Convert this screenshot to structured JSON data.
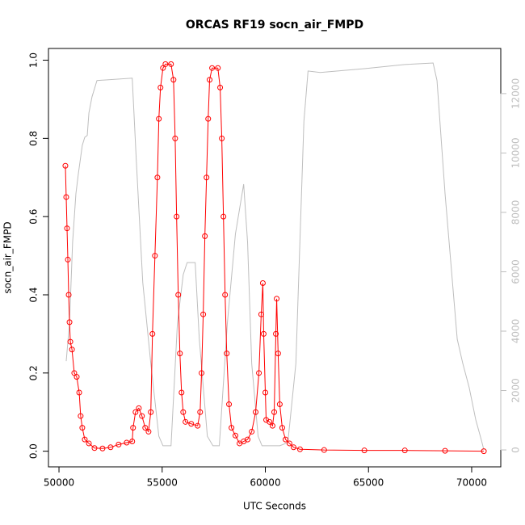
{
  "chart_data": {
    "type": "line",
    "title": "ORCAS RF19 socn_air_FMPD",
    "xlabel": "UTC Seconds",
    "ylabel": "socn_air_FMPD",
    "xlim": [
      49490,
      71410
    ],
    "xticks": [
      50000,
      55000,
      60000,
      65000,
      70000
    ],
    "ylim": [
      -0.04,
      1.03
    ],
    "yticks": [
      {
        "value": 0,
        "label": "0.0"
      },
      {
        "value": 0.2,
        "label": "0.2"
      },
      {
        "value": 0.4,
        "label": "0.4"
      },
      {
        "value": 0.6,
        "label": "0.6"
      },
      {
        "value": 0.8,
        "label": "0.8"
      },
      {
        "value": 1,
        "label": "1.0"
      }
    ],
    "y2lim": [
      -570,
      13520
    ],
    "y2ticks": [
      0,
      2000,
      4000,
      6000,
      8000,
      10000,
      12000
    ],
    "series": [
      {
        "color": "#ff0000",
        "markers": true,
        "x": [
          50310,
          50350,
          50390,
          50430,
          50470,
          50510,
          50550,
          50630,
          50740,
          50860,
          50980,
          51050,
          51130,
          51250,
          51450,
          51720,
          52110,
          52500,
          52890,
          53280,
          53550,
          53590,
          53710,
          53870,
          54020,
          54180,
          54340,
          54450,
          54530,
          54650,
          54770,
          54840,
          54920,
          55040,
          55160,
          55430,
          55550,
          55630,
          55700,
          55780,
          55860,
          55940,
          56020,
          56130,
          56410,
          56720,
          56840,
          56910,
          56990,
          57070,
          57150,
          57230,
          57300,
          57420,
          57700,
          57810,
          57890,
          57970,
          58050,
          58130,
          58240,
          58360,
          58550,
          58750,
          58950,
          59140,
          59340,
          59530,
          59690,
          59800,
          59880,
          59920,
          60000,
          60040,
          60200,
          60350,
          60430,
          60510,
          60550,
          60620,
          60700,
          60820,
          60980,
          61170,
          61370,
          61680,
          62850,
          64800,
          66760,
          68710,
          70590
        ],
        "values": [
          0.73,
          0.65,
          0.57,
          0.49,
          0.4,
          0.33,
          0.28,
          0.26,
          0.2,
          0.19,
          0.15,
          0.09,
          0.06,
          0.03,
          0.02,
          0.008,
          0.007,
          0.01,
          0.017,
          0.022,
          0.025,
          0.06,
          0.1,
          0.11,
          0.09,
          0.06,
          0.05,
          0.1,
          0.3,
          0.5,
          0.7,
          0.85,
          0.93,
          0.98,
          0.99,
          0.99,
          0.95,
          0.8,
          0.6,
          0.4,
          0.25,
          0.15,
          0.1,
          0.075,
          0.07,
          0.065,
          0.1,
          0.2,
          0.35,
          0.55,
          0.7,
          0.85,
          0.95,
          0.98,
          0.98,
          0.93,
          0.8,
          0.6,
          0.4,
          0.25,
          0.12,
          0.06,
          0.04,
          0.02,
          0.025,
          0.03,
          0.05,
          0.1,
          0.2,
          0.35,
          0.43,
          0.3,
          0.15,
          0.08,
          0.075,
          0.065,
          0.1,
          0.3,
          0.39,
          0.25,
          0.12,
          0.06,
          0.03,
          0.02,
          0.01,
          0.005,
          0.003,
          0.002,
          0.002,
          0.001,
          0
        ]
      },
      {
        "color": "#bebebe",
        "axis": "y2",
        "x": [
          50350,
          50510,
          50660,
          50820,
          50940,
          51130,
          51250,
          51370,
          51450,
          51600,
          51840,
          53550,
          53750,
          54060,
          54450,
          54840,
          55040,
          55430,
          55740,
          56020,
          56210,
          56600,
          56800,
          57190,
          57460,
          57770,
          58160,
          58550,
          58950,
          59140,
          59340,
          59650,
          59840,
          60700,
          61090,
          61480,
          61870,
          62070,
          62660,
          64800,
          66760,
          68130,
          68320,
          68710,
          69300,
          69570,
          69880,
          70200,
          70470,
          70590
        ],
        "values": [
          2990,
          4270,
          6990,
          8630,
          9310,
          10260,
          10530,
          10590,
          11350,
          11890,
          12440,
          12520,
          9710,
          5640,
          2910,
          460,
          140,
          140,
          4270,
          5900,
          6310,
          6310,
          3730,
          460,
          140,
          140,
          4270,
          7270,
          8950,
          6990,
          2910,
          460,
          140,
          140,
          245,
          2910,
          11070,
          12760,
          12710,
          12840,
          12980,
          13030,
          12440,
          8630,
          3730,
          2910,
          2100,
          1010,
          330,
          0
        ]
      }
    ]
  }
}
